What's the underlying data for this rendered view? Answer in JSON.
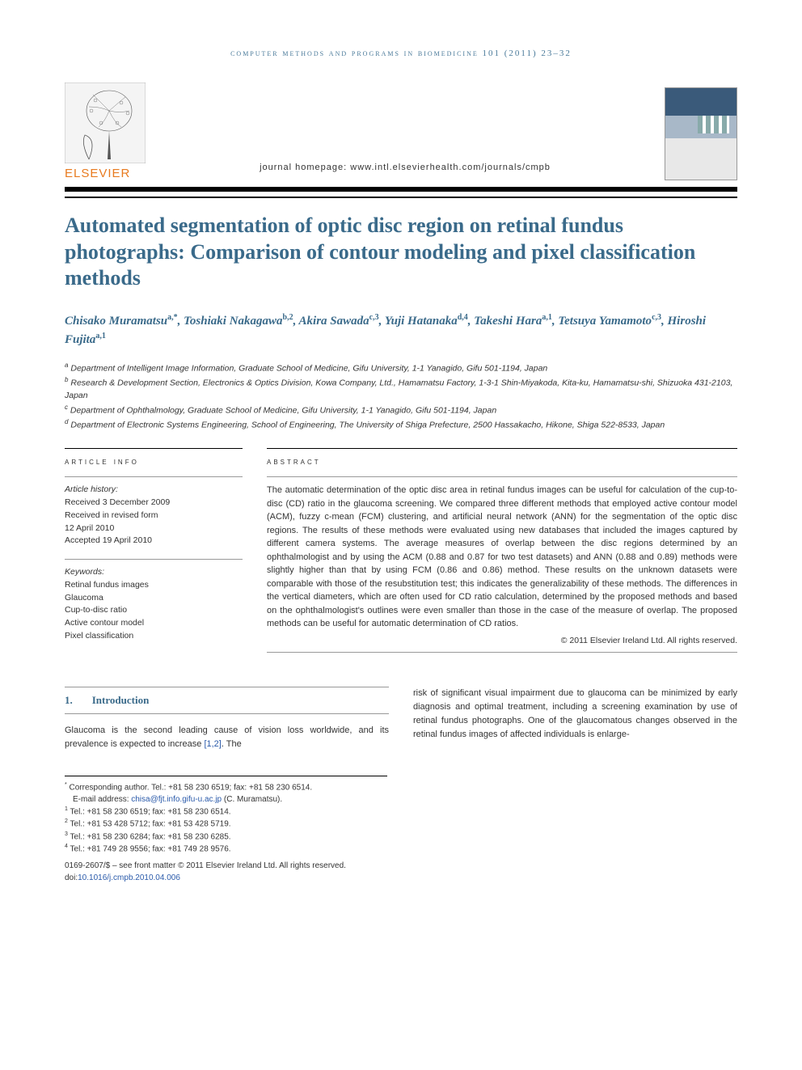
{
  "running_head": "computer methods and programs in biomedicine 101 (2011) 23–32",
  "publisher_name": "ELSEVIER",
  "journal_homepage_label": "journal homepage:",
  "journal_homepage_url": "www.intl.elsevierhealth.com/journals/cmpb",
  "cover_text": "Computer Methods and Programs in Biomedicine",
  "title": "Automated segmentation of optic disc region on retinal fundus photographs: Comparison of contour modeling and pixel classification methods",
  "authors": [
    {
      "name": "Chisako Muramatsu",
      "refs": "a,*"
    },
    {
      "name": "Toshiaki Nakagawa",
      "refs": "b,2"
    },
    {
      "name": "Akira Sawada",
      "refs": "c,3"
    },
    {
      "name": "Yuji Hatanaka",
      "refs": "d,4"
    },
    {
      "name": "Takeshi Hara",
      "refs": "a,1"
    },
    {
      "name": "Tetsuya Yamamoto",
      "refs": "c,3"
    },
    {
      "name": "Hiroshi Fujita",
      "refs": "a,1"
    }
  ],
  "affiliations": [
    {
      "key": "a",
      "text": "Department of Intelligent Image Information, Graduate School of Medicine, Gifu University, 1-1 Yanagido, Gifu 501-1194, Japan"
    },
    {
      "key": "b",
      "text": "Research & Development Section, Electronics & Optics Division, Kowa Company, Ltd., Hamamatsu Factory, 1-3-1 Shin-Miyakoda, Kita-ku, Hamamatsu-shi, Shizuoka 431-2103, Japan"
    },
    {
      "key": "c",
      "text": "Department of Ophthalmology, Graduate School of Medicine, Gifu University, 1-1 Yanagido, Gifu 501-1194, Japan"
    },
    {
      "key": "d",
      "text": "Department of Electronic Systems Engineering, School of Engineering, The University of Shiga Prefecture, 2500 Hassakacho, Hikone, Shiga 522-8533, Japan"
    }
  ],
  "article_info_head": "article info",
  "abstract_head": "abstract",
  "history_label": "Article history:",
  "history": [
    "Received 3 December 2009",
    "Received in revised form",
    "12 April 2010",
    "Accepted 19 April 2010"
  ],
  "keywords_label": "Keywords:",
  "keywords": [
    "Retinal fundus images",
    "Glaucoma",
    "Cup-to-disc ratio",
    "Active contour model",
    "Pixel classification"
  ],
  "abstract": "The automatic determination of the optic disc area in retinal fundus images can be useful for calculation of the cup-to-disc (CD) ratio in the glaucoma screening. We compared three different methods that employed active contour model (ACM), fuzzy c-mean (FCM) clustering, and artificial neural network (ANN) for the segmentation of the optic disc regions. The results of these methods were evaluated using new databases that included the images captured by different camera systems. The average measures of overlap between the disc regions determined by an ophthalmologist and by using the ACM (0.88 and 0.87 for two test datasets) and ANN (0.88 and 0.89) methods were slightly higher than that by using FCM (0.86 and 0.86) method. These results on the unknown datasets were comparable with those of the resubstitution test; this indicates the generalizability of these methods. The differences in the vertical diameters, which are often used for CD ratio calculation, determined by the proposed methods and based on the ophthalmologist's outlines were even smaller than those in the case of the measure of overlap. The proposed methods can be useful for automatic determination of CD ratios.",
  "copyright": "© 2011 Elsevier Ireland Ltd. All rights reserved.",
  "intro_num": "1.",
  "intro_title": "Introduction",
  "intro_para_left": "Glaucoma is the second leading cause of vision loss worldwide, and its prevalence is expected to increase ",
  "intro_cite": "[1,2]",
  "intro_para_left_tail": ". The",
  "intro_para_right": "risk of significant visual impairment due to glaucoma can be minimized by early diagnosis and optimal treatment, including a screening examination by use of retinal fundus photographs. One of the glaucomatous changes observed in the retinal fundus images of affected individuals is enlarge-",
  "footnotes": {
    "corr": "Corresponding author. Tel.: +81 58 230 6519; fax: +81 58 230 6514.",
    "email_label": "E-mail address:",
    "email": "chisa@fjt.info.gifu-u.ac.jp",
    "email_who": "(C. Muramatsu).",
    "lines": [
      {
        "key": "1",
        "text": "Tel.: +81 58 230 6519; fax: +81 58 230 6514."
      },
      {
        "key": "2",
        "text": "Tel.: +81 53 428 5712; fax: +81 53 428 5719."
      },
      {
        "key": "3",
        "text": "Tel.: +81 58 230 6284; fax: +81 58 230 6285."
      },
      {
        "key": "4",
        "text": "Tel.: +81 749 28 9556; fax: +81 749 28 9576."
      }
    ]
  },
  "bottom": {
    "issn": "0169-2607/$ – see front matter © 2011 Elsevier Ireland Ltd. All rights reserved.",
    "doi_label": "doi:",
    "doi": "10.1016/j.cmpb.2010.04.006"
  },
  "colors": {
    "accent": "#3a6a8a",
    "orange": "#e87a1f",
    "link": "#2a5aaa"
  }
}
